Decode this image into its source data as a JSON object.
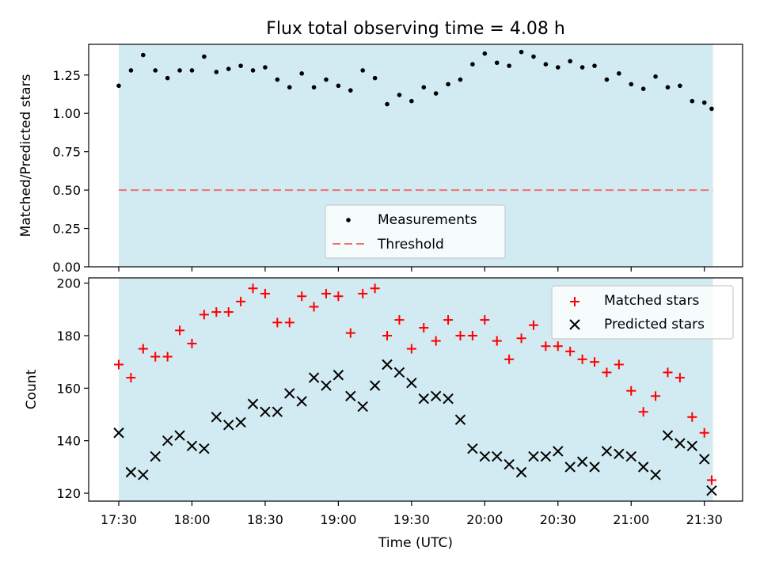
{
  "chart_data": [
    {
      "type": "scatter",
      "title": "Flux total observing time = 4.08 h",
      "xlabel": "",
      "ylabel": "Matched/Predicted stars",
      "ylim": [
        0,
        1.45
      ],
      "yticks": [
        "0.00",
        "0.25",
        "0.50",
        "0.75",
        "1.00",
        "1.25"
      ],
      "yticks_values": [
        0,
        0.25,
        0.5,
        0.75,
        1.0,
        1.25
      ],
      "shaded_region_minutes": [
        0,
        243.5
      ],
      "threshold": 0.5,
      "legend": [
        "Measurements",
        "Threshold"
      ],
      "legend_position": "lower-center",
      "colors": {
        "measurements": "#000000",
        "threshold": "#f07070",
        "shade": "#add8e6"
      },
      "x_minutes": [
        0,
        5,
        10,
        15,
        20,
        25,
        30,
        35,
        40,
        45,
        50,
        55,
        60,
        65,
        70,
        75,
        80,
        85,
        90,
        95,
        100,
        105,
        110,
        115,
        120,
        125,
        130,
        135,
        140,
        145,
        150,
        155,
        160,
        165,
        170,
        175,
        180,
        185,
        190,
        195,
        200,
        205,
        210,
        215,
        220,
        225,
        230,
        235,
        240,
        243
      ],
      "values": [
        1.18,
        1.28,
        1.38,
        1.28,
        1.23,
        1.28,
        1.28,
        1.37,
        1.27,
        1.29,
        1.31,
        1.28,
        1.3,
        1.22,
        1.17,
        1.26,
        1.17,
        1.22,
        1.18,
        1.15,
        1.28,
        1.23,
        1.06,
        1.12,
        1.08,
        1.17,
        1.13,
        1.19,
        1.22,
        1.32,
        1.39,
        1.33,
        1.31,
        1.4,
        1.37,
        1.32,
        1.3,
        1.34,
        1.3,
        1.31,
        1.22,
        1.26,
        1.19,
        1.16,
        1.24,
        1.17,
        1.18,
        1.08,
        1.07,
        1.03
      ]
    },
    {
      "type": "scatter",
      "title": "",
      "xlabel": "Time (UTC)",
      "ylabel": "Count",
      "ylim": [
        117,
        202
      ],
      "yticks": [
        "120",
        "140",
        "160",
        "180",
        "200"
      ],
      "yticks_values": [
        120,
        140,
        160,
        180,
        200
      ],
      "xticks": [
        "17:30",
        "18:00",
        "18:30",
        "19:00",
        "19:30",
        "20:00",
        "20:30",
        "21:00",
        "21:30"
      ],
      "xticks_minutes": [
        0,
        30,
        60,
        90,
        120,
        150,
        180,
        210,
        240
      ],
      "x_minutes": [
        0,
        5,
        10,
        15,
        20,
        25,
        30,
        35,
        40,
        45,
        50,
        55,
        60,
        65,
        70,
        75,
        80,
        85,
        90,
        95,
        100,
        105,
        110,
        115,
        120,
        125,
        130,
        135,
        140,
        145,
        150,
        155,
        160,
        165,
        170,
        175,
        180,
        185,
        190,
        195,
        200,
        205,
        210,
        215,
        220,
        225,
        230,
        235,
        240,
        243
      ],
      "legend_position": "top-right",
      "series": [
        {
          "name": "Matched stars",
          "marker": "+",
          "color": "#ff0000",
          "values": [
            169,
            164,
            175,
            172,
            172,
            182,
            177,
            188,
            189,
            189,
            193,
            198,
            196,
            185,
            185,
            195,
            191,
            196,
            195,
            181,
            196,
            198,
            180,
            186,
            175,
            183,
            178,
            186,
            180,
            180,
            186,
            178,
            171,
            179,
            184,
            176,
            176,
            174,
            171,
            170,
            166,
            169,
            159,
            151,
            157,
            166,
            164,
            149,
            143,
            125
          ]
        },
        {
          "name": "Predicted stars",
          "marker": "x",
          "color": "#000000",
          "values": [
            143,
            128,
            127,
            134,
            140,
            142,
            138,
            137,
            149,
            146,
            147,
            154,
            151,
            151,
            158,
            155,
            164,
            161,
            165,
            157,
            153,
            161,
            169,
            166,
            162,
            156,
            157,
            156,
            148,
            137,
            134,
            134,
            131,
            128,
            134,
            134,
            136,
            130,
            132,
            130,
            136,
            135,
            134,
            130,
            127,
            142,
            139,
            138,
            133,
            121
          ]
        }
      ]
    }
  ]
}
